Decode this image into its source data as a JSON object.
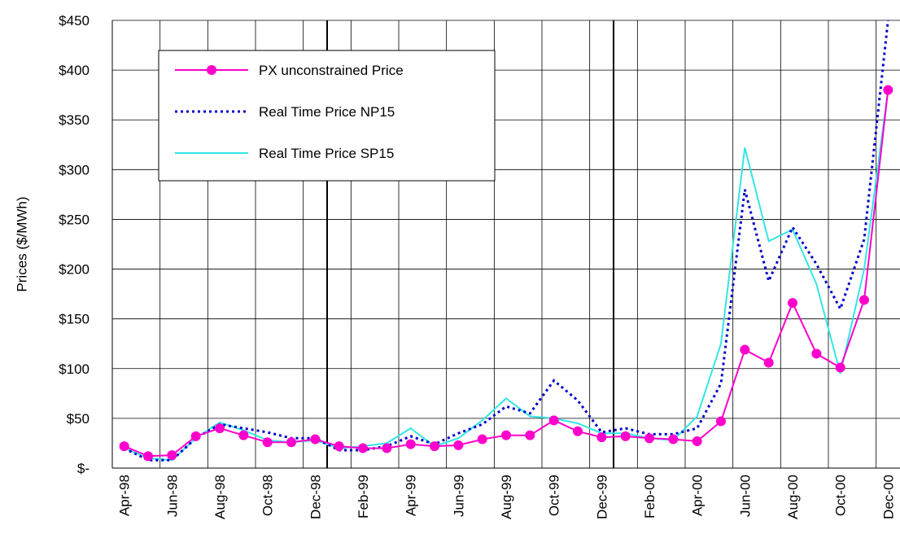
{
  "chart_data": {
    "type": "line",
    "y_label": "Prices ($/MWh)",
    "categories": [
      "Apr-98",
      null,
      "Jun-98",
      null,
      "Aug-98",
      null,
      "Oct-98",
      null,
      "Dec-98",
      null,
      "Feb-99",
      null,
      "Apr-99",
      null,
      "Jun-99",
      null,
      "Aug-99",
      null,
      "Oct-99",
      null,
      "Dec-99",
      null,
      "Feb-00",
      null,
      "Apr-00",
      null,
      "Jun-00",
      null,
      "Aug-00",
      null,
      "Oct-00",
      null,
      "Dec-00"
    ],
    "series": [
      {
        "name": "PX unconstrained Price",
        "color": "#ff00cc",
        "marker": "circle",
        "dash": "solid",
        "values": [
          22,
          12,
          13,
          32,
          40,
          33,
          26,
          26,
          29,
          22,
          20,
          20,
          24,
          22,
          23,
          29,
          33,
          33,
          48,
          37,
          31,
          32,
          30,
          29,
          27,
          47,
          119,
          106,
          166,
          115,
          101,
          169,
          380
        ]
      },
      {
        "name": "Real Time Price NP15",
        "color": "#0000cc",
        "marker": "none",
        "dash": "dotted",
        "values": [
          20,
          8,
          8,
          30,
          44,
          40,
          36,
          30,
          30,
          18,
          18,
          22,
          32,
          24,
          35,
          44,
          62,
          55,
          88,
          68,
          36,
          40,
          34,
          34,
          40,
          85,
          280,
          188,
          242,
          205,
          160,
          230,
          450
        ]
      },
      {
        "name": "Real Time Price SP15",
        "color": "#33e6e6",
        "marker": "none",
        "dash": "solid",
        "values": [
          20,
          10,
          8,
          30,
          46,
          38,
          28,
          26,
          28,
          20,
          22,
          25,
          40,
          22,
          30,
          48,
          70,
          52,
          50,
          45,
          35,
          35,
          30,
          28,
          52,
          125,
          322,
          228,
          240,
          185,
          95,
          200,
          380
        ]
      }
    ],
    "ylim": [
      0,
      450
    ],
    "yticks": [
      {
        "value": 0,
        "label": "$-"
      },
      {
        "value": 50,
        "label": "$50"
      },
      {
        "value": 100,
        "label": "$100"
      },
      {
        "value": 150,
        "label": "$150"
      },
      {
        "value": 200,
        "label": "$200"
      },
      {
        "value": 250,
        "label": "$250"
      },
      {
        "value": 300,
        "label": "$300"
      },
      {
        "value": 350,
        "label": "$350"
      },
      {
        "value": 400,
        "label": "$400"
      },
      {
        "value": 450,
        "label": "$450"
      }
    ],
    "grid": true
  }
}
